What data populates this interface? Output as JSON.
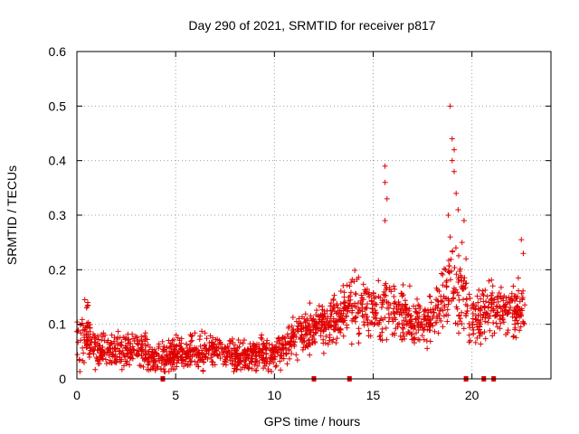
{
  "chart_data": {
    "type": "scatter",
    "title": "Day 290 of 2021, SRMTID for receiver p817",
    "xlabel": "GPS time / hours",
    "ylabel": "SRMTID / TECUs",
    "xlim": [
      0,
      24
    ],
    "ylim": [
      0,
      0.6
    ],
    "xticks": [
      0,
      5,
      10,
      15,
      20
    ],
    "xtick_labels": [
      "0",
      "5",
      "10",
      "15",
      "20"
    ],
    "yticks": [
      0,
      0.1,
      0.2,
      0.3,
      0.4,
      0.5,
      0.6
    ],
    "ytick_labels": [
      "0",
      "0.1",
      "0.2",
      "0.3",
      "0.4",
      "0.5",
      "0.6"
    ],
    "grid": true,
    "marker": "+",
    "color": "#e00000",
    "series_name": "SRMTID",
    "approx_points": 1800,
    "envelope": [
      {
        "x": 0.0,
        "mean": 0.06,
        "spread": 0.03
      },
      {
        "x": 0.5,
        "mean": 0.085,
        "spread": 0.035
      },
      {
        "x": 1.0,
        "mean": 0.05,
        "spread": 0.025
      },
      {
        "x": 2.0,
        "mean": 0.05,
        "spread": 0.02
      },
      {
        "x": 3.0,
        "mean": 0.055,
        "spread": 0.022
      },
      {
        "x": 4.0,
        "mean": 0.035,
        "spread": 0.018
      },
      {
        "x": 5.0,
        "mean": 0.045,
        "spread": 0.02
      },
      {
        "x": 6.0,
        "mean": 0.05,
        "spread": 0.022
      },
      {
        "x": 7.0,
        "mean": 0.05,
        "spread": 0.022
      },
      {
        "x": 8.0,
        "mean": 0.04,
        "spread": 0.02
      },
      {
        "x": 9.0,
        "mean": 0.05,
        "spread": 0.022
      },
      {
        "x": 10.0,
        "mean": 0.045,
        "spread": 0.02
      },
      {
        "x": 11.0,
        "mean": 0.075,
        "spread": 0.025
      },
      {
        "x": 12.0,
        "mean": 0.09,
        "spread": 0.03
      },
      {
        "x": 13.0,
        "mean": 0.11,
        "spread": 0.03
      },
      {
        "x": 14.0,
        "mean": 0.14,
        "spread": 0.035
      },
      {
        "x": 15.0,
        "mean": 0.13,
        "spread": 0.035
      },
      {
        "x": 16.0,
        "mean": 0.13,
        "spread": 0.035
      },
      {
        "x": 17.0,
        "mean": 0.1,
        "spread": 0.03
      },
      {
        "x": 18.0,
        "mean": 0.11,
        "spread": 0.03
      },
      {
        "x": 19.0,
        "mean": 0.18,
        "spread": 0.06
      },
      {
        "x": 19.5,
        "mean": 0.15,
        "spread": 0.05
      },
      {
        "x": 20.0,
        "mean": 0.1,
        "spread": 0.03
      },
      {
        "x": 21.0,
        "mean": 0.13,
        "spread": 0.03
      },
      {
        "x": 22.0,
        "mean": 0.12,
        "spread": 0.035
      },
      {
        "x": 22.7,
        "mean": 0.12,
        "spread": 0.035
      }
    ],
    "notable_points": [
      {
        "x": 0.4,
        "y": 0.145
      },
      {
        "x": 15.6,
        "y": 0.39
      },
      {
        "x": 15.6,
        "y": 0.36
      },
      {
        "x": 15.7,
        "y": 0.33
      },
      {
        "x": 15.6,
        "y": 0.29
      },
      {
        "x": 18.9,
        "y": 0.5
      },
      {
        "x": 19.0,
        "y": 0.44
      },
      {
        "x": 19.1,
        "y": 0.42
      },
      {
        "x": 19.0,
        "y": 0.4
      },
      {
        "x": 19.1,
        "y": 0.38
      },
      {
        "x": 19.2,
        "y": 0.34
      },
      {
        "x": 19.3,
        "y": 0.31
      },
      {
        "x": 18.8,
        "y": 0.3
      },
      {
        "x": 18.9,
        "y": 0.26
      },
      {
        "x": 19.5,
        "y": 0.25
      },
      {
        "x": 19.6,
        "y": 0.29
      },
      {
        "x": 19.7,
        "y": 0.22
      },
      {
        "x": 22.5,
        "y": 0.255
      },
      {
        "x": 22.6,
        "y": 0.23
      }
    ],
    "gap_markers_x": [
      4.35,
      12.0,
      13.8,
      19.7,
      20.6,
      21.1
    ]
  }
}
